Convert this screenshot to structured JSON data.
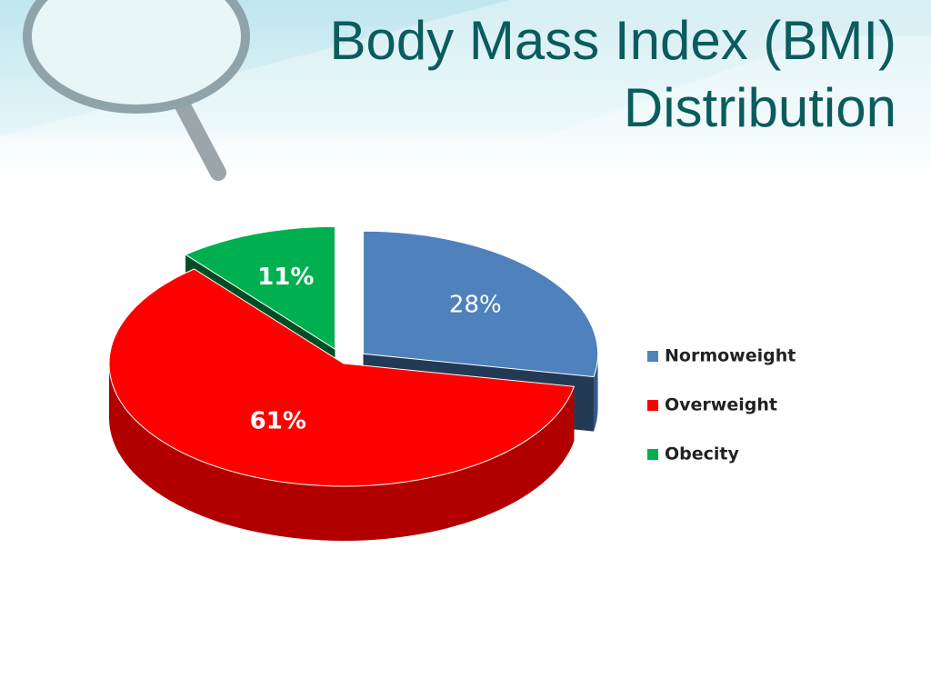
{
  "chart_data": {
    "type": "pie",
    "title": "Body Mass Index (BMI) Distribution",
    "categories": [
      "Normoweight",
      "Overweight",
      "Obecity"
    ],
    "values": [
      28,
      61,
      11
    ],
    "value_labels": [
      "28%",
      "61%",
      "11%"
    ],
    "colors": [
      "#4f81bd",
      "#ff0000",
      "#00b050"
    ],
    "legend": "right"
  }
}
